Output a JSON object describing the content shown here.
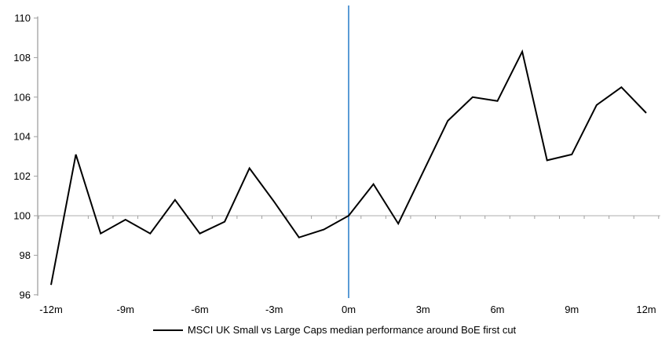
{
  "chart_data": {
    "type": "line",
    "x": [
      -12,
      -11,
      -10,
      -9,
      -8,
      -7,
      -6,
      -5,
      -4,
      -3,
      -2,
      -1,
      0,
      1,
      2,
      3,
      4,
      5,
      6,
      7,
      8,
      9,
      10,
      11,
      12
    ],
    "series": [
      {
        "name": "MSCI UK Small vs Large Caps median performance around BoE first cut",
        "color": "#000000",
        "values": [
          96.5,
          103.1,
          99.1,
          99.8,
          99.1,
          100.8,
          99.1,
          99.7,
          102.4,
          100.7,
          98.9,
          99.3,
          100.0,
          101.6,
          99.6,
          102.2,
          104.8,
          106.0,
          105.8,
          108.3,
          102.8,
          103.1,
          105.6,
          106.5,
          105.2
        ]
      }
    ],
    "title": "",
    "xlabel": "",
    "ylabel": "",
    "xlim": [
      -12.5,
      12.5
    ],
    "ylim": [
      96,
      110
    ],
    "y_tick_values": [
      96,
      98,
      100,
      102,
      104,
      106,
      108,
      110
    ],
    "y_tick_labels": [
      "96",
      "98",
      "100",
      "102",
      "104",
      "106",
      "108",
      "110"
    ],
    "x_tick_positions": [
      -12,
      -9,
      -6,
      -3,
      0,
      3,
      6,
      9,
      12
    ],
    "x_tick_labels": [
      "-12m",
      "-9m",
      "-6m",
      "-3m",
      "0m",
      "3m",
      "6m",
      "9m",
      "12m"
    ],
    "minor_tick_interval_months": 1,
    "baseline_value": 100,
    "event_line": {
      "x": 0,
      "color": "#5B9BD5"
    },
    "grid": "baseline-only",
    "legend_position": "bottom-center",
    "colors": {
      "axis": "#A0A0A0",
      "baseline": "#BEBEBE",
      "text": "#000000",
      "background": "#FFFFFF"
    }
  },
  "legend": {
    "entry": "MSCI UK Small vs Large Caps median performance around BoE first cut"
  }
}
